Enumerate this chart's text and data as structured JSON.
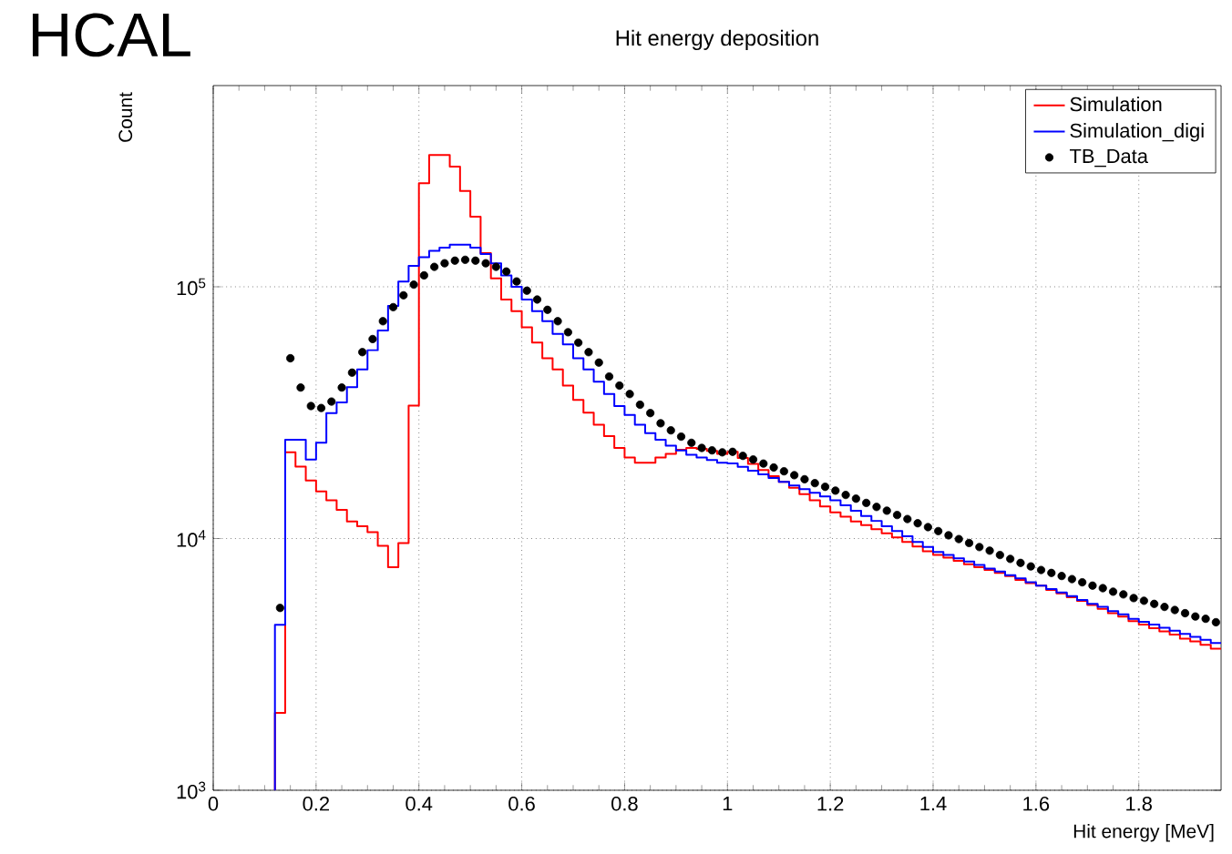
{
  "chart_data": {
    "type": "histogram",
    "title": "Hit energy deposition",
    "xlabel": "Hit energy [MeV]",
    "ylabel": "Count",
    "annotations": [
      "HCAL"
    ],
    "log": "y",
    "grid": true,
    "legend": "top right",
    "marker": "circle",
    "xlim": [
      0,
      1.96
    ],
    "xticks": [
      0,
      0.2,
      0.4,
      0.6,
      0.8,
      1,
      1.2,
      1.4,
      1.6,
      1.8
    ],
    "ylim": [
      1000,
      630000
    ],
    "yticks": [
      {
        "value": 1000,
        "label": "10$^{3}$"
      },
      {
        "value": 10000,
        "label": "10$^{4}$"
      },
      {
        "value": 100000,
        "label": "10$^{5}$"
      }
    ],
    "bins": [
      0.12,
      0.14,
      0.16,
      0.18,
      0.2,
      0.22,
      0.24,
      0.26,
      0.28,
      0.3,
      0.32,
      0.34,
      0.36,
      0.38,
      0.4,
      0.42,
      0.44,
      0.46,
      0.48,
      0.5,
      0.52,
      0.54,
      0.56,
      0.58,
      0.6,
      0.62,
      0.64,
      0.66,
      0.68,
      0.7,
      0.72,
      0.74,
      0.76,
      0.78,
      0.8,
      0.82,
      0.84,
      0.86,
      0.88,
      0.9,
      0.92,
      0.94,
      0.96,
      0.98,
      1.0,
      1.02,
      1.04,
      1.06,
      1.08,
      1.1,
      1.12,
      1.14,
      1.16,
      1.18,
      1.2,
      1.22,
      1.24,
      1.26,
      1.28,
      1.3,
      1.32,
      1.34,
      1.36,
      1.38,
      1.4,
      1.42,
      1.44,
      1.46,
      1.48,
      1.5,
      1.52,
      1.54,
      1.56,
      1.58,
      1.6,
      1.62,
      1.64,
      1.66,
      1.68,
      1.7,
      1.72,
      1.74,
      1.76,
      1.78,
      1.8,
      1.82,
      1.84,
      1.86,
      1.88,
      1.9,
      1.92,
      1.94,
      1.96
    ],
    "series": [
      {
        "name": "Simulation",
        "color": "#ff0000",
        "values": [
          2030,
          22000,
          19300,
          17000,
          15400,
          14200,
          13000,
          11700,
          11200,
          10600,
          9350,
          7700,
          9600,
          33700,
          258000,
          334000,
          334000,
          300000,
          240000,
          190000,
          136000,
          108000,
          89000,
          80000,
          69000,
          60000,
          52000,
          47000,
          40500,
          35500,
          31600,
          28300,
          25500,
          22900,
          21000,
          20000,
          20000,
          21000,
          21700,
          22500,
          22900,
          22700,
          22300,
          21700,
          22100,
          20900,
          19800,
          18700,
          17700,
          16800,
          15900,
          15000,
          14200,
          13400,
          12700,
          12200,
          11700,
          11300,
          10900,
          10500,
          10100,
          9700,
          9300,
          8900,
          8600,
          8400,
          8150,
          7900,
          7700,
          7500,
          7300,
          7100,
          6850,
          6650,
          6500,
          6250,
          6050,
          5850,
          5650,
          5450,
          5250,
          5050,
          4900,
          4700,
          4550,
          4400,
          4280,
          4150,
          4000,
          3900,
          3780,
          3650
        ]
      },
      {
        "name": "Simulation_digi",
        "color": "#0000ff",
        "values": [
          4540,
          24700,
          24700,
          20600,
          24000,
          31500,
          34700,
          39900,
          47000,
          56000,
          67000,
          84000,
          105000,
          121000,
          131000,
          139000,
          143000,
          147000,
          147000,
          143000,
          135000,
          124000,
          111000,
          100000,
          89000,
          80000,
          73000,
          65000,
          59000,
          52000,
          47000,
          42000,
          37500,
          33600,
          31000,
          28300,
          26200,
          24700,
          23400,
          22400,
          21500,
          21000,
          20500,
          20000,
          19900,
          19250,
          18600,
          18000,
          17400,
          16800,
          16250,
          15700,
          15200,
          14700,
          14200,
          13550,
          12900,
          12300,
          11750,
          11200,
          10700,
          10200,
          9700,
          9250,
          8850,
          8600,
          8350,
          8100,
          7850,
          7600,
          7400,
          7150,
          6950,
          6700,
          6500,
          6300,
          6100,
          5900,
          5700,
          5500,
          5350,
          5150,
          5000,
          4800,
          4670,
          4550,
          4420,
          4300,
          4180,
          4070,
          3960,
          3850
        ]
      },
      {
        "name": "TB_Data",
        "type": "scatter",
        "color": "#000000",
        "x": [
          0.13,
          0.15,
          0.17,
          0.19,
          0.21,
          0.23,
          0.25,
          0.27,
          0.29,
          0.31,
          0.33,
          0.35,
          0.37,
          0.39,
          0.41,
          0.43,
          0.45,
          0.47,
          0.49,
          0.51,
          0.53,
          0.55,
          0.57,
          0.59,
          0.61,
          0.63,
          0.65,
          0.67,
          0.69,
          0.71,
          0.73,
          0.75,
          0.77,
          0.79,
          0.81,
          0.83,
          0.85,
          0.87,
          0.89,
          0.91,
          0.93,
          0.95,
          0.97,
          0.99,
          1.01,
          1.03,
          1.05,
          1.07,
          1.09,
          1.11,
          1.13,
          1.15,
          1.17,
          1.19,
          1.21,
          1.23,
          1.25,
          1.27,
          1.29,
          1.31,
          1.33,
          1.35,
          1.37,
          1.39,
          1.41,
          1.43,
          1.45,
          1.47,
          1.49,
          1.51,
          1.53,
          1.55,
          1.57,
          1.59,
          1.61,
          1.63,
          1.65,
          1.67,
          1.69,
          1.71,
          1.73,
          1.75,
          1.77,
          1.79,
          1.81,
          1.83,
          1.85,
          1.87,
          1.89,
          1.91,
          1.93,
          1.95
        ],
        "values": [
          5300,
          52000,
          39800,
          33600,
          33000,
          35000,
          39800,
          45600,
          55000,
          62000,
          73000,
          83000,
          92500,
          102000,
          111000,
          120000,
          124000,
          127000,
          128000,
          127000,
          124000,
          120000,
          115000,
          105000,
          96500,
          89000,
          81000,
          73000,
          66000,
          60000,
          55000,
          50000,
          44000,
          40500,
          37500,
          34000,
          31500,
          28700,
          26900,
          25400,
          24000,
          22900,
          22400,
          22000,
          22100,
          21300,
          20600,
          19850,
          19150,
          18500,
          17850,
          17200,
          16600,
          16050,
          15500,
          14900,
          14400,
          13850,
          13350,
          12900,
          12400,
          11950,
          11500,
          11100,
          10700,
          10300,
          9950,
          9600,
          9250,
          8950,
          8600,
          8300,
          8000,
          7750,
          7500,
          7300,
          7100,
          6900,
          6700,
          6500,
          6350,
          6150,
          6000,
          5800,
          5660,
          5500,
          5350,
          5200,
          5050,
          4900,
          4800,
          4650
        ]
      }
    ]
  }
}
